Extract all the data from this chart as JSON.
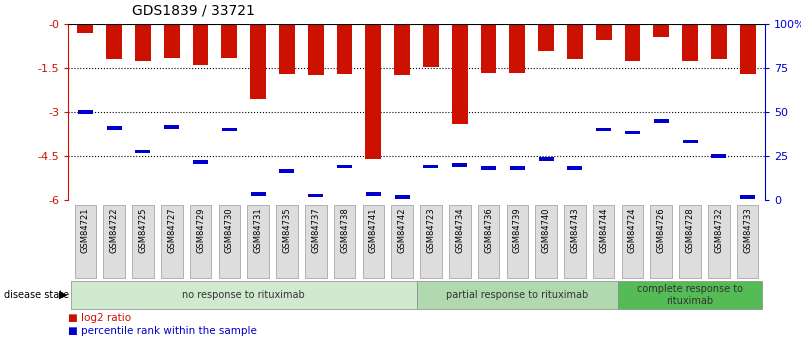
{
  "title": "GDS1839 / 33721",
  "samples": [
    "GSM84721",
    "GSM84722",
    "GSM84725",
    "GSM84727",
    "GSM84729",
    "GSM84730",
    "GSM84731",
    "GSM84735",
    "GSM84737",
    "GSM84738",
    "GSM84741",
    "GSM84742",
    "GSM84723",
    "GSM84734",
    "GSM84736",
    "GSM84739",
    "GSM84740",
    "GSM84743",
    "GSM84744",
    "GSM84724",
    "GSM84726",
    "GSM84728",
    "GSM84732",
    "GSM84733"
  ],
  "log2_values": [
    -0.3,
    -1.2,
    -1.25,
    -1.15,
    -1.4,
    -1.15,
    -2.55,
    -1.7,
    -1.75,
    -1.7,
    -4.6,
    -1.75,
    -1.45,
    -3.4,
    -1.65,
    -1.65,
    -0.9,
    -1.2,
    -0.55,
    -1.25,
    -0.45,
    -1.25,
    -1.2,
    -1.7
  ],
  "percentile_values": [
    -3.0,
    -3.55,
    -4.35,
    -3.5,
    -4.7,
    -3.6,
    -5.8,
    -5.0,
    -5.85,
    -4.85,
    -5.8,
    -5.9,
    -4.85,
    -4.8,
    -4.9,
    -4.9,
    -4.6,
    -4.9,
    -3.6,
    -3.7,
    -3.3,
    -4.0,
    -4.5,
    -5.9
  ],
  "groups": [
    {
      "label": "no response to rituximab",
      "start": 0,
      "end": 12,
      "color": "#d0ead0"
    },
    {
      "label": "partial response to rituximab",
      "start": 12,
      "end": 19,
      "color": "#b0d9b0"
    },
    {
      "label": "complete response to\nrituximab",
      "start": 19,
      "end": 24,
      "color": "#55bb55"
    }
  ],
  "bar_color": "#cc1100",
  "marker_color": "#0000cc",
  "ylim": [
    -6,
    0
  ],
  "yticks": [
    0,
    -1.5,
    -3.0,
    -4.5,
    -6.0
  ],
  "ytick_labels": [
    "-0",
    "-1.5",
    "-3",
    "-4.5",
    "-6"
  ],
  "right_yticks_pct": [
    100,
    75,
    50,
    25,
    0
  ],
  "right_ytick_labels": [
    "100%",
    "75",
    "50",
    "25",
    "0"
  ],
  "grid_values": [
    -1.5,
    -3.0,
    -4.5
  ],
  "bar_color_hex": "#cc1100",
  "left_axis_color": "#cc1100",
  "right_axis_color": "#0000cc"
}
